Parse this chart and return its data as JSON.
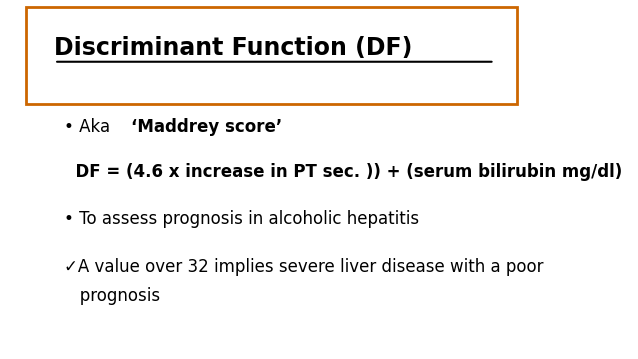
{
  "title": "Discriminant Function (DF)",
  "title_box_color": "#cc6600",
  "bg_color": "#ffffff",
  "text_color": "#000000",
  "bullet1_normal": "• Aka ",
  "bullet1_bold": "‘Maddrey score’",
  "formula": "  DF = (4.6 x increase in PT sec. )) + (serum bilirubin mg/dl)",
  "bullet2": "• To assess prognosis in alcoholic hepatitis",
  "bullet3_line1": "✓A value over 32 implies severe liver disease with a poor",
  "bullet3_line2": "   prognosis",
  "title_fontsize": 17,
  "body_fontsize": 12,
  "formula_fontsize": 12
}
